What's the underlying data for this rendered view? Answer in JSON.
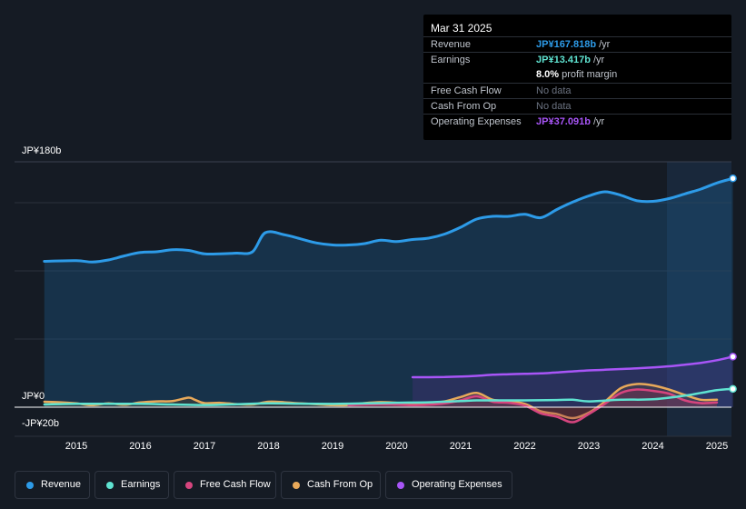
{
  "tooltip": {
    "date": "Mar 31 2025",
    "rows": [
      {
        "label": "Revenue",
        "value": "JP¥167.818b",
        "suffix": "/yr",
        "color": "#2d9be8"
      },
      {
        "label": "Earnings",
        "value": "JP¥13.417b",
        "suffix": "/yr",
        "color": "#5fe3d1"
      },
      {
        "label": "",
        "value": "8.0%",
        "suffix": "profit margin",
        "color": "#ffffff"
      },
      {
        "label": "Free Cash Flow",
        "value": "No data",
        "suffix": "",
        "color": "#6b7280"
      },
      {
        "label": "Cash From Op",
        "value": "No data",
        "suffix": "",
        "color": "#6b7280"
      },
      {
        "label": "Operating Expenses",
        "value": "JP¥37.091b",
        "suffix": "/yr",
        "color": "#a855f7"
      }
    ]
  },
  "legend": [
    {
      "label": "Revenue",
      "color": "#2d9be8"
    },
    {
      "label": "Earnings",
      "color": "#5fe3d1"
    },
    {
      "label": "Free Cash Flow",
      "color": "#d6457e"
    },
    {
      "label": "Cash From Op",
      "color": "#e8a95a"
    },
    {
      "label": "Operating Expenses",
      "color": "#a855f7"
    }
  ],
  "chart_data": {
    "type": "area",
    "title": "",
    "xlabel": "",
    "ylabel": "",
    "y_top_label": "JP¥180b",
    "y_zero_label": "JP¥0",
    "y_bottom_label": "-JP¥20b",
    "ylim": [
      -20,
      180
    ],
    "xlim": [
      2014.45,
      2025.25
    ],
    "x_ticks": [
      2015,
      2016,
      2017,
      2018,
      2019,
      2020,
      2021,
      2022,
      2023,
      2024,
      2025
    ],
    "x_tick_labels": [
      "2015",
      "2016",
      "2017",
      "2018",
      "2019",
      "2020",
      "2021",
      "2022",
      "2023",
      "2024",
      "2025"
    ],
    "forecast_start": 2024.25,
    "series": [
      {
        "name": "Revenue",
        "color": "#2d9be8",
        "fill": true,
        "points": [
          [
            2014.5,
            107
          ],
          [
            2015.0,
            107.5
          ],
          [
            2015.25,
            106.5
          ],
          [
            2015.5,
            108
          ],
          [
            2015.75,
            111
          ],
          [
            2016.0,
            113.5
          ],
          [
            2016.25,
            114
          ],
          [
            2016.5,
            115.5
          ],
          [
            2016.75,
            115
          ],
          [
            2017.0,
            112.5
          ],
          [
            2017.25,
            112.5
          ],
          [
            2017.5,
            113
          ],
          [
            2017.75,
            114
          ],
          [
            2017.95,
            128
          ],
          [
            2018.25,
            126.5
          ],
          [
            2018.5,
            123.5
          ],
          [
            2018.75,
            120.5
          ],
          [
            2019.0,
            119
          ],
          [
            2019.25,
            119
          ],
          [
            2019.5,
            120
          ],
          [
            2019.75,
            122.5
          ],
          [
            2020.0,
            121.5
          ],
          [
            2020.25,
            123
          ],
          [
            2020.5,
            124
          ],
          [
            2020.75,
            127
          ],
          [
            2021.0,
            132
          ],
          [
            2021.25,
            138
          ],
          [
            2021.5,
            140
          ],
          [
            2021.75,
            140
          ],
          [
            2022.0,
            141.5
          ],
          [
            2022.25,
            139
          ],
          [
            2022.5,
            145
          ],
          [
            2022.75,
            150.5
          ],
          [
            2023.0,
            155
          ],
          [
            2023.25,
            158
          ],
          [
            2023.5,
            155.5
          ],
          [
            2023.75,
            151.5
          ],
          [
            2024.0,
            151
          ],
          [
            2024.25,
            153
          ],
          [
            2024.5,
            156.5
          ],
          [
            2024.75,
            160
          ],
          [
            2025.0,
            164.5
          ],
          [
            2025.25,
            167.8
          ]
        ]
      },
      {
        "name": "Operating Expenses",
        "color": "#a855f7",
        "fill": true,
        "points": [
          [
            2020.25,
            22
          ],
          [
            2020.5,
            22
          ],
          [
            2020.75,
            22.2
          ],
          [
            2021.0,
            22.5
          ],
          [
            2021.25,
            23
          ],
          [
            2021.5,
            23.8
          ],
          [
            2021.75,
            24.2
          ],
          [
            2022.0,
            24.5
          ],
          [
            2022.25,
            24.8
          ],
          [
            2022.5,
            25.5
          ],
          [
            2022.75,
            26.3
          ],
          [
            2023.0,
            27
          ],
          [
            2023.25,
            27.5
          ],
          [
            2023.5,
            28
          ],
          [
            2023.75,
            28.5
          ],
          [
            2024.0,
            29.2
          ],
          [
            2024.25,
            30
          ],
          [
            2024.5,
            31.2
          ],
          [
            2024.75,
            32.5
          ],
          [
            2025.0,
            34.5
          ],
          [
            2025.25,
            37.1
          ]
        ]
      },
      {
        "name": "Cash From Op",
        "color": "#e8a95a",
        "fill": true,
        "points": [
          [
            2014.5,
            4
          ],
          [
            2014.75,
            3.6
          ],
          [
            2015.0,
            2.8
          ],
          [
            2015.25,
            1.5
          ],
          [
            2015.5,
            2.8
          ],
          [
            2015.75,
            1.8
          ],
          [
            2016.0,
            3.5
          ],
          [
            2016.25,
            4.3
          ],
          [
            2016.5,
            4.5
          ],
          [
            2016.75,
            7
          ],
          [
            2016.85,
            5.5
          ],
          [
            2017.0,
            3
          ],
          [
            2017.25,
            3.2
          ],
          [
            2017.5,
            2.3
          ],
          [
            2017.75,
            2
          ],
          [
            2018.0,
            4
          ],
          [
            2018.25,
            3.6
          ],
          [
            2018.5,
            2.8
          ],
          [
            2018.75,
            2.2
          ],
          [
            2019.0,
            1.5
          ],
          [
            2019.25,
            1.6
          ],
          [
            2019.5,
            3
          ],
          [
            2019.75,
            3.7
          ],
          [
            2020.0,
            3.3
          ],
          [
            2020.25,
            2.8
          ],
          [
            2020.5,
            3
          ],
          [
            2020.75,
            4.3
          ],
          [
            2021.0,
            7.5
          ],
          [
            2021.25,
            10.5
          ],
          [
            2021.5,
            5.5
          ],
          [
            2021.75,
            4.5
          ],
          [
            2022.0,
            2.5
          ],
          [
            2022.25,
            -3
          ],
          [
            2022.5,
            -5
          ],
          [
            2022.75,
            -8
          ],
          [
            2023.0,
            -4
          ],
          [
            2023.25,
            4
          ],
          [
            2023.5,
            14
          ],
          [
            2023.75,
            17
          ],
          [
            2024.0,
            16
          ],
          [
            2024.25,
            13
          ],
          [
            2024.5,
            9
          ],
          [
            2024.75,
            5.5
          ],
          [
            2025.0,
            5.5
          ]
        ]
      },
      {
        "name": "Free Cash Flow",
        "color": "#d6457e",
        "fill": true,
        "points": [
          [
            2019.25,
            1.4
          ],
          [
            2019.5,
            1.8
          ],
          [
            2019.75,
            2
          ],
          [
            2020.0,
            1.8
          ],
          [
            2020.25,
            1.5
          ],
          [
            2020.5,
            1.8
          ],
          [
            2020.75,
            2.8
          ],
          [
            2021.0,
            5
          ],
          [
            2021.25,
            8
          ],
          [
            2021.5,
            4
          ],
          [
            2021.75,
            3.3
          ],
          [
            2022.0,
            1.2
          ],
          [
            2022.25,
            -4.5
          ],
          [
            2022.5,
            -7
          ],
          [
            2022.75,
            -11
          ],
          [
            2023.0,
            -5
          ],
          [
            2023.25,
            2.5
          ],
          [
            2023.5,
            10.5
          ],
          [
            2023.75,
            13
          ],
          [
            2024.0,
            12
          ],
          [
            2024.25,
            10
          ],
          [
            2024.5,
            5
          ],
          [
            2024.75,
            3
          ],
          [
            2025.0,
            3.5
          ]
        ]
      },
      {
        "name": "Earnings",
        "color": "#5fe3d1",
        "fill": false,
        "points": [
          [
            2014.5,
            2
          ],
          [
            2015.0,
            2.5
          ],
          [
            2015.5,
            2.5
          ],
          [
            2016.0,
            2.5
          ],
          [
            2016.5,
            2
          ],
          [
            2017.0,
            1.6
          ],
          [
            2017.5,
            2.2
          ],
          [
            2018.0,
            2.8
          ],
          [
            2018.5,
            2.6
          ],
          [
            2019.0,
            2.4
          ],
          [
            2019.5,
            2.8
          ],
          [
            2020.0,
            3.3
          ],
          [
            2020.5,
            3.6
          ],
          [
            2021.0,
            4.5
          ],
          [
            2021.25,
            5
          ],
          [
            2021.5,
            5
          ],
          [
            2022.0,
            5
          ],
          [
            2022.5,
            5.3
          ],
          [
            2022.75,
            5.5
          ],
          [
            2023.0,
            4.3
          ],
          [
            2023.5,
            5.5
          ],
          [
            2024.0,
            5.8
          ],
          [
            2024.5,
            8.5
          ],
          [
            2024.75,
            10.5
          ],
          [
            2025.0,
            12.5
          ],
          [
            2025.25,
            13.4
          ]
        ]
      }
    ]
  }
}
